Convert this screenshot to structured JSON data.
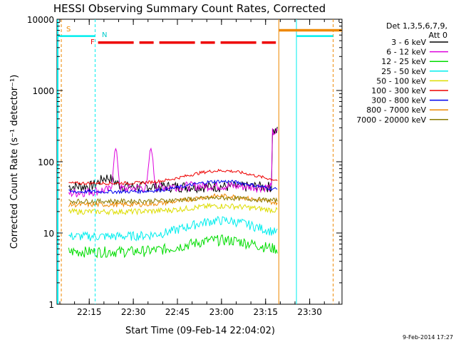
{
  "chart_data": {
    "type": "line",
    "title": "HESSI Observing Summary Count Rates, Corrected",
    "xlabel": "Start Time (09-Feb-14 22:04:02)",
    "ylabel": "Corrected Count Rate (s⁻¹ detector⁻¹)",
    "yscale": "log",
    "ylim": [
      1,
      10000
    ],
    "xlim": [
      "22:04:02",
      "23:41:00"
    ],
    "x_tick_labels": [
      "22:15",
      "22:30",
      "22:45",
      "23:00",
      "23:15",
      "23:30"
    ],
    "y_tick_labels": [
      "1",
      "10",
      "100",
      "1000",
      "10000"
    ],
    "legend_title": [
      "Det 1,3,5,6,7,9,",
      "Att 0"
    ],
    "legend_position": "right",
    "grid": false,
    "flags": {
      "S_label": "S",
      "N_label": "N",
      "F_label": "F"
    },
    "timestamp": "9-Feb-2014 17:27",
    "series": [
      {
        "name": "3 - 6 keV",
        "color": "#000000"
      },
      {
        "name": "6 - 12 keV",
        "color": "#dd00dd"
      },
      {
        "name": "12 - 25 keV",
        "color": "#00dd00"
      },
      {
        "name": "25 - 50 keV",
        "color": "#00eeee"
      },
      {
        "name": "50 - 100 keV",
        "color": "#dddd00"
      },
      {
        "name": "100 - 300 keV",
        "color": "#ee0000"
      },
      {
        "name": "300 - 800 keV",
        "color": "#0000ee"
      },
      {
        "name": "800 - 7000 keV",
        "color": "#ee8800"
      },
      {
        "name": "7000 - 20000 keV",
        "color": "#8a7a00"
      }
    ]
  }
}
